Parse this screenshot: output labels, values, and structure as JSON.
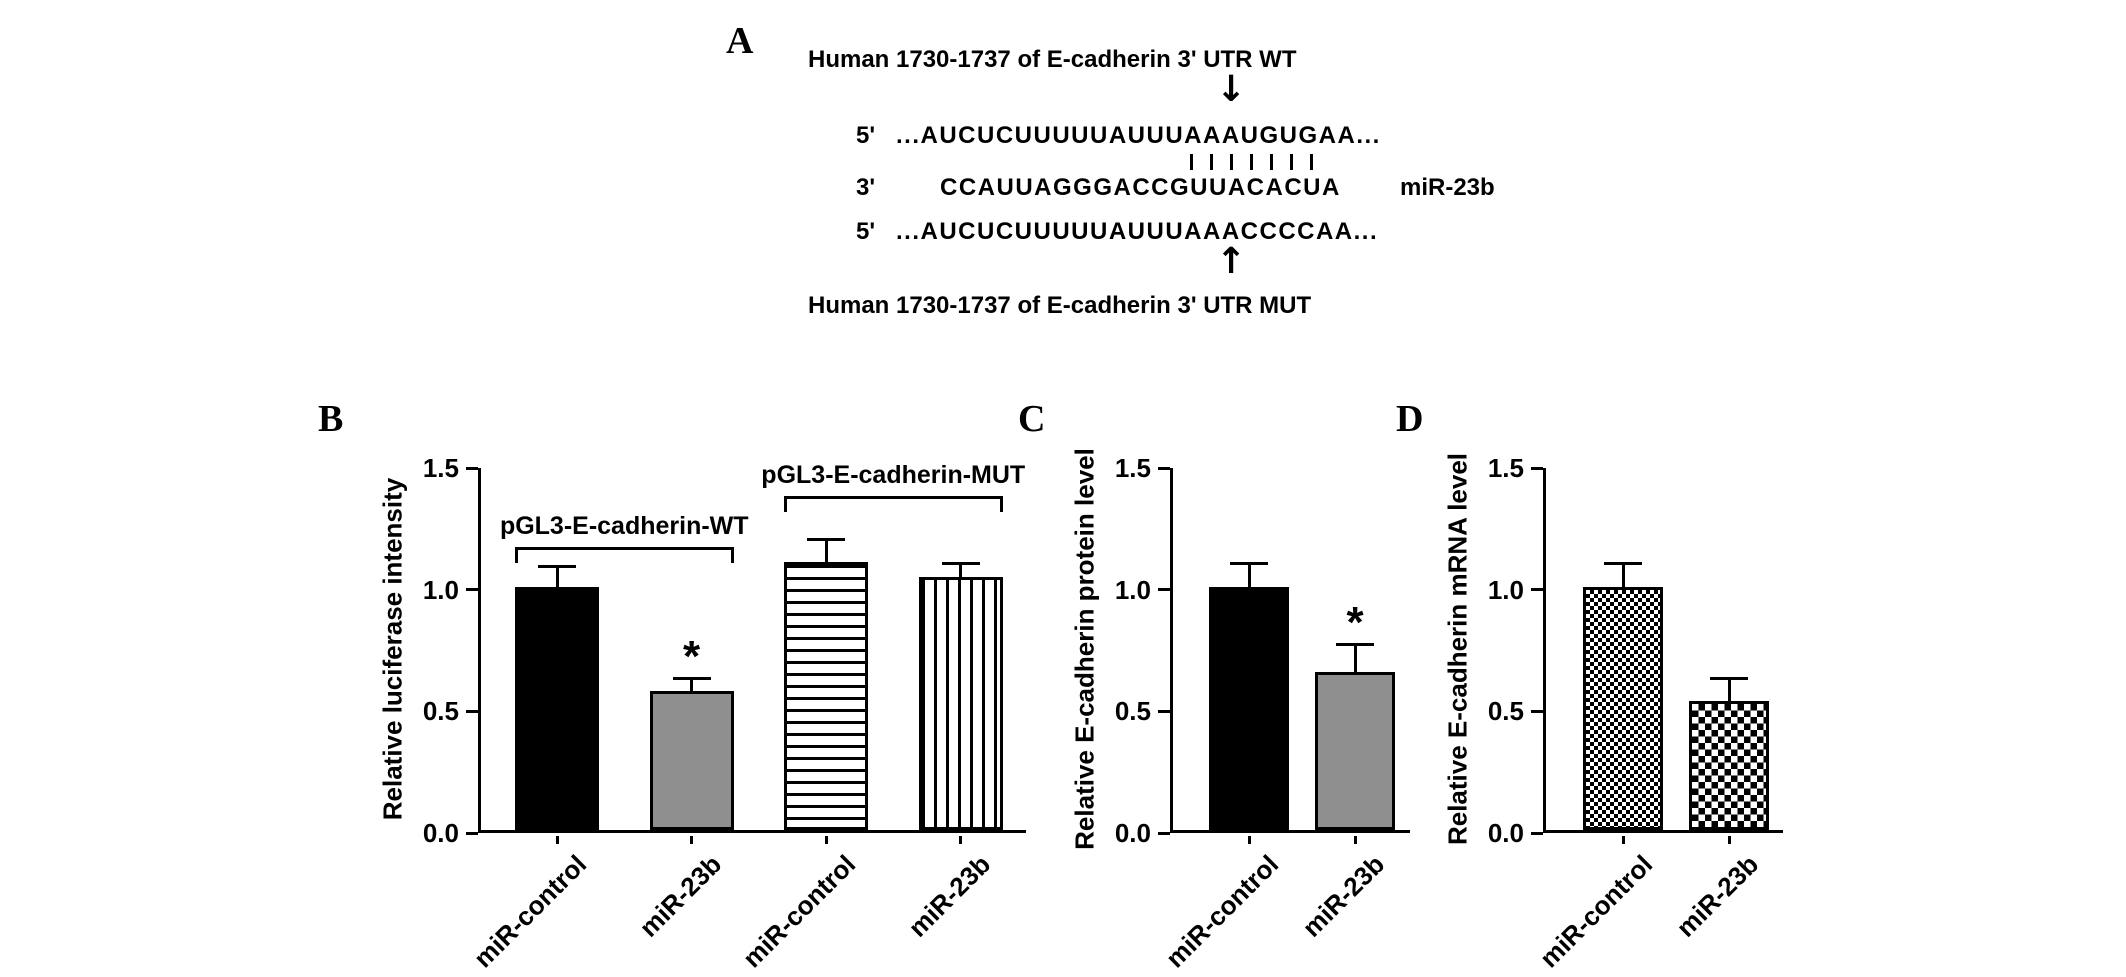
{
  "page": {
    "background": "#ffffff"
  },
  "icons": {
    "arrow_down": "↓",
    "arrow_up": "↑"
  },
  "colors": {
    "bar_black": "#000000",
    "bar_gray": "#8f8f8f",
    "axis": "#000000"
  },
  "panel_a": {
    "label": "A",
    "title_top": "Human 1730-1737 of  E-cadherin 3' UTR WT",
    "wt_prefix": "5'",
    "wt_seq": "...AUCUCUUUUUAUUUAAAUGUGAA...",
    "pairing_bar_count": 7,
    "mir_prefix": "3'",
    "mir_seq": "CCAUUAGGGACCGUUACACUA",
    "mir_name": "miR-23b",
    "mut_prefix": "5'",
    "mut_seq": "...AUCUCUUUUUAUUUAAACCCCAA...",
    "title_bottom": "Human 1730-1737 of  E-cadherin 3' UTR MUT"
  },
  "chart_data": [
    {
      "panel_label": "B",
      "type": "bar",
      "title": "",
      "ylabel": "Relative luciferase intensity",
      "ylim": [
        0,
        1.5
      ],
      "yticks": [
        0,
        0.5,
        1.0,
        1.5
      ],
      "categories": [
        "miR-control",
        "miR-23b",
        "miR-control",
        "miR-23b"
      ],
      "values": [
        1.0,
        0.57,
        1.1,
        1.04
      ],
      "errors": [
        0.09,
        0.06,
        0.1,
        0.06
      ],
      "significance": [
        "",
        "*",
        "",
        ""
      ],
      "patterns": [
        "solid-black",
        "solid-gray",
        "hlines",
        "vlines"
      ],
      "group_brackets": [
        {
          "label": "pGL3-E-cadherin-WT",
          "from": 0,
          "to": 1,
          "y": 1.17
        },
        {
          "label": "pGL3-E-cadherin-MUT",
          "from": 2,
          "to": 3,
          "y": 1.38
        }
      ]
    },
    {
      "panel_label": "C",
      "type": "bar",
      "title": "",
      "ylabel": "Relative  E-cadherin protein  level",
      "ylim": [
        0,
        1.5
      ],
      "yticks": [
        0,
        0.5,
        1.0,
        1.5
      ],
      "categories": [
        "miR-control",
        "miR-23b"
      ],
      "values": [
        1.0,
        0.65
      ],
      "errors": [
        0.1,
        0.12
      ],
      "significance": [
        "",
        "*"
      ],
      "patterns": [
        "solid-black",
        "solid-gray"
      ],
      "group_brackets": []
    },
    {
      "panel_label": "D",
      "type": "bar",
      "title": "",
      "ylabel": "Relative  E-cadherin mRNA  level",
      "ylim": [
        0,
        1.5
      ],
      "yticks": [
        0,
        0.5,
        1.0,
        1.5
      ],
      "categories": [
        "miR-control",
        "miR-23b"
      ],
      "values": [
        1.0,
        0.53
      ],
      "errors": [
        0.1,
        0.1
      ],
      "significance": [
        "",
        ""
      ],
      "patterns": [
        "checker-fine",
        "checker"
      ],
      "group_brackets": []
    }
  ]
}
